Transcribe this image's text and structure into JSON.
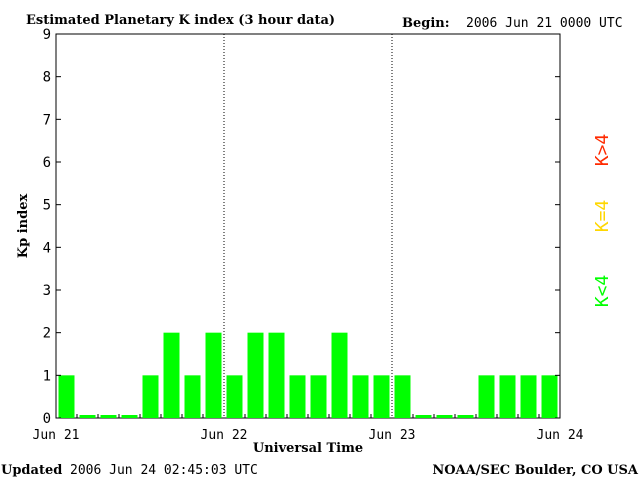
{
  "header": {
    "title": "Estimated Planetary K index (3 hour data)",
    "begin_label": "Begin:",
    "begin_value": "2006 Jun 21 0000 UTC"
  },
  "footer": {
    "updated_label": "Updated",
    "updated_value": "2006 Jun 24 02:45:03 UTC",
    "source": "NOAA/SEC Boulder, CO USA"
  },
  "legend": {
    "high": "K>4",
    "equal": "K=4",
    "low": "K<4"
  },
  "colors": {
    "low": "#00ff00",
    "equal": "#ffd700",
    "high": "#ff2a00",
    "axis": "#000000"
  },
  "chart_data": {
    "type": "bar",
    "title": "Estimated Planetary K index (3 hour data)",
    "xlabel": "Universal Time",
    "ylabel": "Kp index",
    "ylim": [
      0,
      9
    ],
    "yticks": [
      0,
      1,
      2,
      3,
      4,
      5,
      6,
      7,
      8,
      9
    ],
    "xticks": [
      "Jun 21",
      "Jun 22",
      "Jun 23",
      "Jun 24"
    ],
    "day_dividers": [
      "Jun 22",
      "Jun 23"
    ],
    "interval_hours": 3,
    "values": [
      1,
      0,
      0,
      0,
      1,
      2,
      1,
      2,
      1,
      2,
      2,
      1,
      1,
      2,
      1,
      1,
      1,
      0,
      0,
      0,
      1,
      1,
      1,
      1
    ]
  }
}
